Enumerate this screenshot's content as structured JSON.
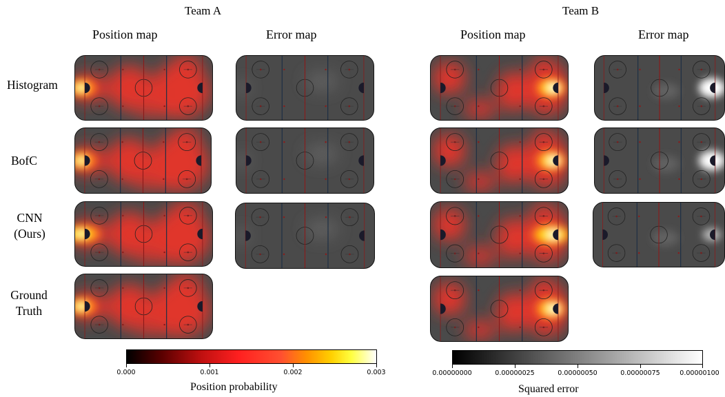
{
  "team_a": {
    "title": "Team A"
  },
  "team_b": {
    "title": "Team B"
  },
  "columns": {
    "position": "Position map",
    "error": "Error map"
  },
  "rows": {
    "histogram": [
      "Histogram"
    ],
    "bofc": [
      "BofC"
    ],
    "cnn": [
      "CNN",
      "(Ours)"
    ],
    "ground_truth": [
      "Ground",
      "Truth"
    ]
  },
  "colorbar_position": {
    "title": "Position probability",
    "ticks": [
      "0.000",
      "0.001",
      "0.002",
      "0.003"
    ]
  },
  "colorbar_error": {
    "title": "Squared error",
    "ticks": [
      "0.00000000",
      "0.00000025",
      "0.00000050",
      "0.00000075",
      "0.00000100"
    ]
  },
  "colors": {
    "rink_bg": "#4a4a4a",
    "heat_red": "#e8342a",
    "heat_yellow": "#ffe000",
    "center_line": "#8b1a1a",
    "blue_line": "#1e2f44"
  }
}
